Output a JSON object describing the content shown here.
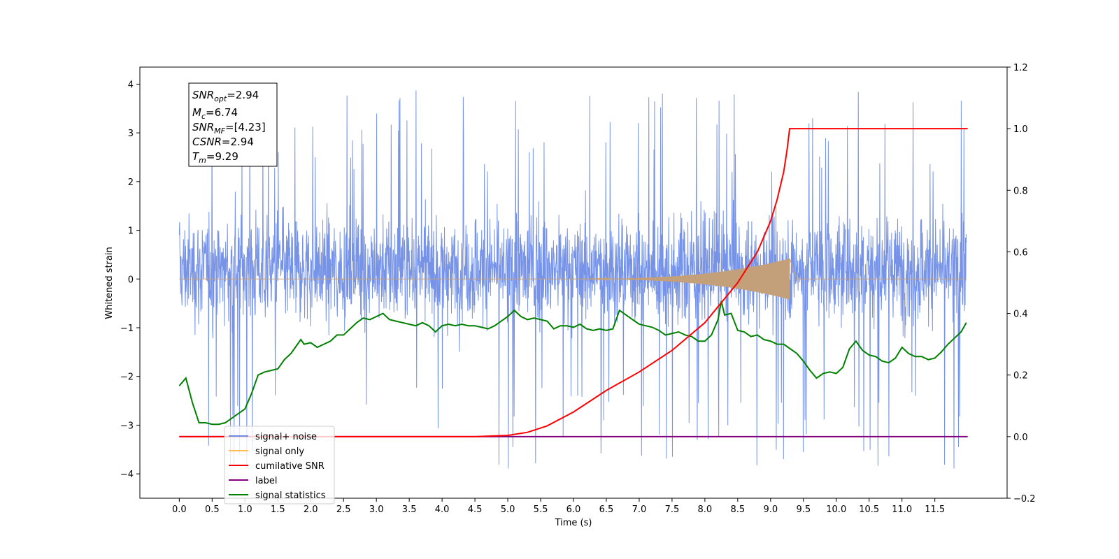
{
  "chart_data": {
    "type": "line",
    "xlabel": "Time (s)",
    "ylabel_left": "Whitened strain",
    "xlim": [
      -0.6,
      12.6
    ],
    "ylim_left": [
      -4.5,
      4.35
    ],
    "ylim_right": [
      -0.2,
      1.2
    ],
    "x_ticks": [
      "0.0",
      "0.5",
      "1.0",
      "1.5",
      "2.0",
      "2.5",
      "3.0",
      "3.5",
      "4.0",
      "4.5",
      "5.0",
      "5.5",
      "6.0",
      "6.5",
      "7.0",
      "7.5",
      "8.0",
      "8.5",
      "9.0",
      "9.5",
      "10.0",
      "10.5",
      "11.0",
      "11.5"
    ],
    "y_ticks_left": [
      "4",
      "3",
      "2",
      "1",
      "0",
      "−1",
      "−2",
      "−3",
      "−4"
    ],
    "y_ticks_right": [
      "1.2",
      "1.0",
      "0.8",
      "0.6",
      "0.4",
      "0.2",
      "0.0",
      "−0.2"
    ],
    "info_box": {
      "snr_opt": "SNR_opt=2.94",
      "mc": "M_c=6.74",
      "snr_mf": "SNR_MF=[4.23]",
      "csnr": "CSNR=2.94",
      "tm": "T_m=9.29"
    },
    "legend": {
      "location": "lower left",
      "entries": [
        {
          "label": "signal+ noise",
          "color": "#6f8de6"
        },
        {
          "label": "signal only",
          "color": "#ffc04d"
        },
        {
          "label": "cumilative SNR",
          "color": "#ff0000"
        },
        {
          "label": "label",
          "color": "#800080"
        },
        {
          "label": "signal statistics",
          "color": "#008000"
        }
      ]
    },
    "series": [
      {
        "name": "signal+ noise",
        "axis": "left",
        "color": "#6f8de6",
        "t_start": 0.0,
        "t_end": 11.98,
        "band": [
          -1.6,
          1.9
        ],
        "spike_range": [
          -4.0,
          4.0
        ],
        "description_of_shape": "dense stationary noise"
      },
      {
        "name": "signal only",
        "axis": "left",
        "color": "#ffc04d",
        "chirp": {
          "start": 5.5,
          "merger": 9.29,
          "peak_amplitude": 0.42,
          "end": 9.4
        }
      },
      {
        "name": "cumilative SNR",
        "axis": "right",
        "color": "#ff0000",
        "x": [
          0.0,
          4.5,
          5.0,
          5.3,
          5.6,
          6.0,
          6.5,
          7.0,
          7.5,
          8.0,
          8.5,
          8.8,
          9.0,
          9.1,
          9.2,
          9.25,
          9.29,
          9.3,
          12.0
        ],
        "y": [
          0.0,
          0.0,
          0.004,
          0.014,
          0.035,
          0.08,
          0.15,
          0.21,
          0.28,
          0.37,
          0.5,
          0.6,
          0.7,
          0.77,
          0.86,
          0.93,
          1.0,
          1.0,
          1.0
        ]
      },
      {
        "name": "label",
        "axis": "right",
        "color": "#800080",
        "x": [
          0.0,
          12.0
        ],
        "y": [
          0.0,
          0.0
        ]
      },
      {
        "name": "signal statistics",
        "axis": "right",
        "color": "#008000",
        "x": [
          0.0,
          0.1,
          0.2,
          0.3,
          0.4,
          0.5,
          0.6,
          0.7,
          0.8,
          0.9,
          1.0,
          1.1,
          1.2,
          1.3,
          1.4,
          1.5,
          1.6,
          1.7,
          1.8,
          1.85,
          1.9,
          2.0,
          2.1,
          2.2,
          2.3,
          2.4,
          2.5,
          2.6,
          2.7,
          2.8,
          2.9,
          3.0,
          3.1,
          3.2,
          3.3,
          3.4,
          3.5,
          3.6,
          3.7,
          3.8,
          3.9,
          4.0,
          4.1,
          4.2,
          4.3,
          4.4,
          4.5,
          4.6,
          4.7,
          4.8,
          4.9,
          5.0,
          5.1,
          5.2,
          5.3,
          5.4,
          5.5,
          5.6,
          5.7,
          5.8,
          5.9,
          6.0,
          6.1,
          6.2,
          6.3,
          6.4,
          6.5,
          6.6,
          6.7,
          6.8,
          6.9,
          7.0,
          7.1,
          7.2,
          7.3,
          7.4,
          7.5,
          7.6,
          7.7,
          7.8,
          7.9,
          8.0,
          8.1,
          8.2,
          8.25,
          8.3,
          8.4,
          8.5,
          8.6,
          8.7,
          8.8,
          8.9,
          9.0,
          9.1,
          9.2,
          9.3,
          9.4,
          9.5,
          9.6,
          9.7,
          9.8,
          9.9,
          10.0,
          10.1,
          10.2,
          10.3,
          10.4,
          10.5,
          10.6,
          10.7,
          10.8,
          10.9,
          11.0,
          11.1,
          11.2,
          11.3,
          11.4,
          11.5,
          11.6,
          11.7,
          11.8,
          11.9,
          11.98
        ],
        "y": [
          0.165,
          0.19,
          0.11,
          0.045,
          0.045,
          0.04,
          0.04,
          0.045,
          0.06,
          0.075,
          0.09,
          0.14,
          0.2,
          0.21,
          0.215,
          0.22,
          0.25,
          0.27,
          0.3,
          0.315,
          0.3,
          0.305,
          0.29,
          0.3,
          0.31,
          0.33,
          0.33,
          0.35,
          0.37,
          0.385,
          0.38,
          0.39,
          0.4,
          0.38,
          0.375,
          0.37,
          0.365,
          0.36,
          0.37,
          0.36,
          0.34,
          0.36,
          0.365,
          0.36,
          0.365,
          0.36,
          0.36,
          0.355,
          0.35,
          0.36,
          0.375,
          0.39,
          0.41,
          0.39,
          0.38,
          0.385,
          0.38,
          0.375,
          0.35,
          0.36,
          0.36,
          0.355,
          0.365,
          0.35,
          0.345,
          0.35,
          0.345,
          0.35,
          0.41,
          0.395,
          0.38,
          0.365,
          0.36,
          0.355,
          0.345,
          0.33,
          0.335,
          0.34,
          0.33,
          0.325,
          0.31,
          0.31,
          0.33,
          0.38,
          0.44,
          0.395,
          0.4,
          0.345,
          0.34,
          0.325,
          0.33,
          0.315,
          0.31,
          0.3,
          0.3,
          0.285,
          0.27,
          0.245,
          0.215,
          0.19,
          0.205,
          0.21,
          0.205,
          0.225,
          0.285,
          0.31,
          0.28,
          0.265,
          0.26,
          0.245,
          0.24,
          0.255,
          0.29,
          0.27,
          0.26,
          0.26,
          0.25,
          0.255,
          0.275,
          0.3,
          0.32,
          0.34,
          0.37
        ]
      }
    ]
  }
}
